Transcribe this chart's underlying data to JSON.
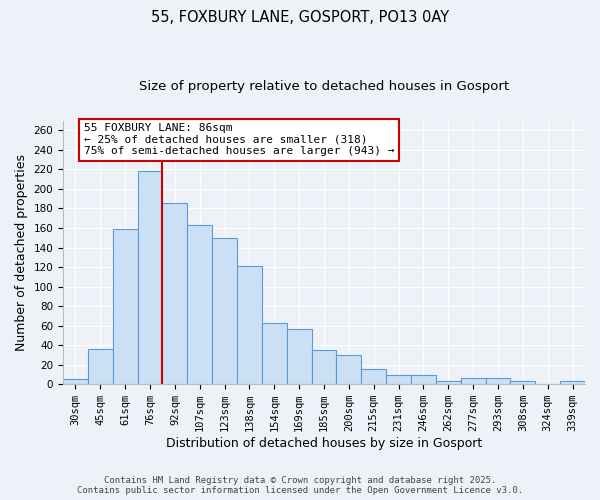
{
  "title": "55, FOXBURY LANE, GOSPORT, PO13 0AY",
  "subtitle": "Size of property relative to detached houses in Gosport",
  "xlabel": "Distribution of detached houses by size in Gosport",
  "ylabel": "Number of detached properties",
  "categories": [
    "30sqm",
    "45sqm",
    "61sqm",
    "76sqm",
    "92sqm",
    "107sqm",
    "123sqm",
    "138sqm",
    "154sqm",
    "169sqm",
    "185sqm",
    "200sqm",
    "215sqm",
    "231sqm",
    "246sqm",
    "262sqm",
    "277sqm",
    "293sqm",
    "308sqm",
    "324sqm",
    "339sqm"
  ],
  "values": [
    5,
    36,
    159,
    218,
    186,
    163,
    150,
    121,
    63,
    57,
    35,
    30,
    16,
    9,
    9,
    3,
    6,
    6,
    3,
    0,
    3
  ],
  "bar_color": "#cce0f5",
  "bar_edge_color": "#5b9bd5",
  "annotation_text_line1": "55 FOXBURY LANE: 86sqm",
  "annotation_text_line2": "← 25% of detached houses are smaller (318)",
  "annotation_text_line3": "75% of semi-detached houses are larger (943) →",
  "annotation_box_color": "#ffffff",
  "annotation_box_edge_color": "#cc0000",
  "red_line_color": "#cc0000",
  "footer_line1": "Contains HM Land Registry data © Crown copyright and database right 2025.",
  "footer_line2": "Contains public sector information licensed under the Open Government Licence v3.0.",
  "ylim": [
    0,
    270
  ],
  "yticks": [
    0,
    20,
    40,
    60,
    80,
    100,
    120,
    140,
    160,
    180,
    200,
    220,
    240,
    260
  ],
  "background_color": "#eef2f8",
  "title_fontsize": 10.5,
  "subtitle_fontsize": 9.5,
  "tick_fontsize": 7.5,
  "label_fontsize": 9,
  "footer_fontsize": 6.5
}
